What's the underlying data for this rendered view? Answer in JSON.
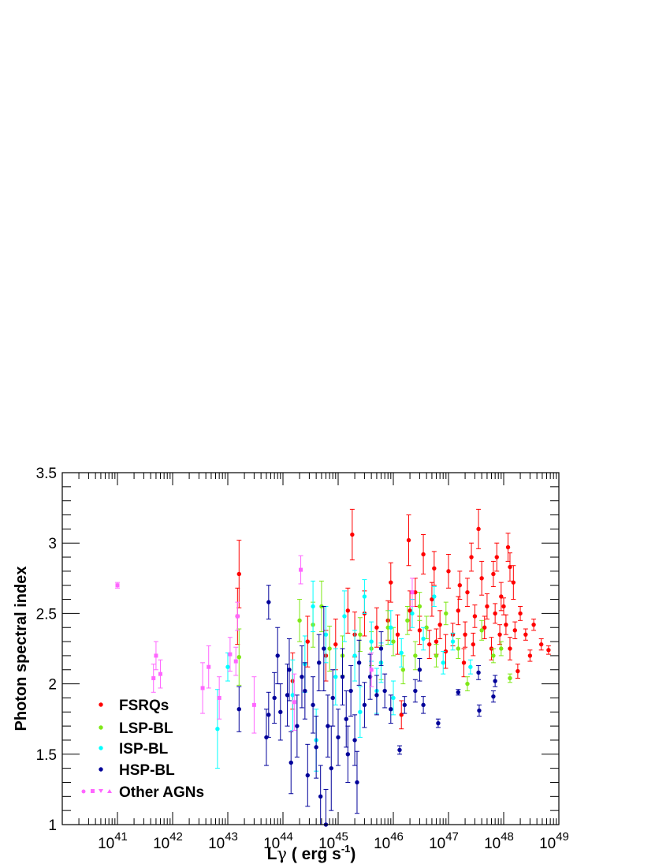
{
  "chart_data": {
    "type": "scatter",
    "title": "",
    "xlabel_parts": [
      "L",
      "γ",
      " ( erg s",
      "-1",
      ")"
    ],
    "ylabel": "Photon spectral index",
    "x_scale": "log",
    "xlim": [
      1e+40,
      1e+49
    ],
    "ylim": [
      1,
      3.5
    ],
    "x_ticks": [
      {
        "base": "10",
        "exp": "41"
      },
      {
        "base": "10",
        "exp": "42"
      },
      {
        "base": "10",
        "exp": "43"
      },
      {
        "base": "10",
        "exp": "44"
      },
      {
        "base": "10",
        "exp": "45"
      },
      {
        "base": "10",
        "exp": "46"
      },
      {
        "base": "10",
        "exp": "47"
      },
      {
        "base": "10",
        "exp": "48"
      },
      {
        "base": "10",
        "exp": "49"
      }
    ],
    "y_ticks": [
      "1",
      "1.5",
      "2",
      "2.5",
      "3",
      "3.5"
    ],
    "y_tick_values": [
      1,
      1.5,
      2,
      2.5,
      3,
      3.5
    ],
    "grid": false,
    "legend_position": "bottom-left",
    "legend": [
      "FSRQs",
      "LSP-BL",
      "ISP-BL",
      "HSP-BL",
      "Other AGNs"
    ],
    "series": [
      {
        "name": "FSRQs",
        "color": "#ff0000",
        "marker": "circle",
        "points": [
          [
            1.6e+43,
            2.78,
            0.24
          ],
          [
            1.5e+43,
            2.48,
            0.2
          ],
          [
            1.8e+45,
            3.06,
            0.18
          ],
          [
            1.9e+46,
            3.02,
            0.18
          ],
          [
            3.5e+47,
            3.1,
            0.14
          ],
          [
            7.5e+47,
            2.9,
            0.1
          ],
          [
            1.2e+48,
            2.97,
            0.1
          ],
          [
            1.3e+48,
            2.83,
            0.1
          ],
          [
            1.5e+48,
            2.72,
            0.12
          ],
          [
            2e+48,
            2.5,
            0.05
          ],
          [
            2.5e+48,
            2.35,
            0.04
          ],
          [
            3.5e+48,
            2.42,
            0.04
          ],
          [
            4.8e+48,
            2.28,
            0.04
          ],
          [
            6.5e+48,
            2.24,
            0.03
          ],
          [
            1.8e+48,
            2.09,
            0.05
          ],
          [
            3e+48,
            2.2,
            0.04
          ],
          [
            1.4e+46,
            1.78,
            0.1
          ],
          [
            8.9e+46,
            2.23,
            0.12
          ],
          [
            1e+47,
            2.8,
            0.12
          ],
          [
            2.2e+47,
            2.65,
            0.1
          ],
          [
            5e+47,
            2.55,
            0.09
          ],
          [
            9e+47,
            2.62,
            0.1
          ],
          [
            1.3e+48,
            2.25,
            0.08
          ],
          [
            1.1e+48,
            2.42,
            0.07
          ],
          [
            6e+47,
            2.25,
            0.08
          ],
          [
            4e+47,
            2.75,
            0.12
          ],
          [
            3e+47,
            2.48,
            0.08
          ],
          [
            2e+47,
            2.35,
            0.09
          ],
          [
            1.5e+47,
            2.52,
            0.1
          ],
          [
            7e+46,
            2.42,
            0.1
          ],
          [
            5e+46,
            2.6,
            0.12
          ],
          [
            3e+46,
            2.38,
            0.1
          ],
          [
            2e+46,
            2.52,
            0.14
          ],
          [
            1.2e+46,
            2.35,
            0.14
          ],
          [
            8e+45,
            2.45,
            0.14
          ],
          [
            5e+45,
            2.4,
            0.14
          ],
          [
            3e+45,
            2.5,
            0.16
          ],
          [
            2e+45,
            2.35,
            0.16
          ],
          [
            1.5e+45,
            2.52,
            0.16
          ],
          [
            9e+44,
            2.28,
            0.18
          ],
          [
            6e+44,
            2.2,
            0.18
          ],
          [
            2.8e+44,
            2.3,
            0.18
          ],
          [
            1.5e+44,
            2.02,
            0.2
          ],
          [
            1.9e+47,
            2.15,
            0.1
          ],
          [
            4.5e+46,
            2.28,
            0.1
          ],
          [
            2.5e+46,
            2.65,
            0.1
          ],
          [
            1.6e+47,
            2.7,
            0.1
          ],
          [
            2.6e+47,
            2.9,
            0.1
          ],
          [
            6.5e+47,
            2.78,
            0.09
          ],
          [
            8.5e+47,
            2.35,
            0.07
          ],
          [
            1e+48,
            2.55,
            0.06
          ],
          [
            1.6e+48,
            2.38,
            0.06
          ],
          [
            5.5e+46,
            2.82,
            0.12
          ],
          [
            3.5e+46,
            2.92,
            0.14
          ],
          [
            9e+45,
            2.72,
            0.14
          ],
          [
            6e+46,
            2.3,
            0.09
          ],
          [
            1.2e+47,
            2.35,
            0.08
          ],
          [
            2.8e+47,
            2.28,
            0.08
          ],
          [
            4.5e+47,
            2.4,
            0.08
          ],
          [
            7e+47,
            2.5,
            0.07
          ]
        ]
      },
      {
        "name": "LSP-BL",
        "color": "#7fe817",
        "marker": "circle",
        "points": [
          [
            1.6e+43,
            2.19,
            0.2
          ],
          [
            2e+44,
            2.45,
            0.15
          ],
          [
            3.5e+44,
            2.42,
            0.16
          ],
          [
            5e+44,
            2.55,
            0.18
          ],
          [
            7e+44,
            2.25,
            0.16
          ],
          [
            1.2e+45,
            2.2,
            0.14
          ],
          [
            2.5e+45,
            2.35,
            0.12
          ],
          [
            4e+45,
            2.25,
            0.12
          ],
          [
            6e+45,
            2.15,
            0.12
          ],
          [
            1e+46,
            2.3,
            0.1
          ],
          [
            1.5e+46,
            2.1,
            0.1
          ],
          [
            2.5e+46,
            2.2,
            0.1
          ],
          [
            4e+46,
            2.4,
            0.08
          ],
          [
            6e+46,
            2.2,
            0.08
          ],
          [
            9e+46,
            2.5,
            0.08
          ],
          [
            1.5e+47,
            2.25,
            0.07
          ],
          [
            2.2e+47,
            2.0,
            0.05
          ],
          [
            4e+47,
            2.38,
            0.07
          ],
          [
            6.5e+47,
            2.2,
            0.05
          ],
          [
            9e+47,
            2.25,
            0.05
          ],
          [
            1.3e+48,
            2.04,
            0.03
          ],
          [
            3e+46,
            2.55,
            0.1
          ],
          [
            8e+45,
            2.4,
            0.12
          ],
          [
            1.8e+46,
            2.45,
            0.1
          ]
        ]
      },
      {
        "name": "ISP-BL",
        "color": "#00ffff",
        "marker": "circle",
        "points": [
          [
            1e+43,
            2.12,
            0.1
          ],
          [
            6.5e+42,
            1.68,
            0.28
          ],
          [
            1.5e+44,
            1.92,
            0.25
          ],
          [
            2.5e+44,
            2.14,
            0.2
          ],
          [
            3.5e+44,
            2.55,
            0.18
          ],
          [
            6e+44,
            2.35,
            0.2
          ],
          [
            9e+44,
            2.05,
            0.2
          ],
          [
            1.3e+45,
            2.48,
            0.18
          ],
          [
            2e+45,
            2.2,
            0.18
          ],
          [
            3e+45,
            2.62,
            0.12
          ],
          [
            4e+45,
            2.3,
            0.14
          ],
          [
            6e+45,
            2.15,
            0.14
          ],
          [
            9e+45,
            2.4,
            0.12
          ],
          [
            1.4e+46,
            2.22,
            0.1
          ],
          [
            2.2e+46,
            2.5,
            0.1
          ],
          [
            3.5e+46,
            2.32,
            0.08
          ],
          [
            5.5e+46,
            2.62,
            0.07
          ],
          [
            8e+46,
            2.15,
            0.08
          ],
          [
            1.2e+47,
            2.3,
            0.06
          ],
          [
            2.5e+47,
            2.12,
            0.05
          ],
          [
            5e+45,
            1.95,
            0.16
          ],
          [
            2.5e+45,
            1.8,
            0.18
          ],
          [
            1e+46,
            1.9,
            0.12
          ],
          [
            4e+44,
            1.6,
            0.22
          ]
        ]
      },
      {
        "name": "HSP-BL",
        "color": "#000099",
        "marker": "circle",
        "points": [
          [
            1.6e+43,
            1.82,
            0.16
          ],
          [
            5e+43,
            1.62,
            0.2
          ],
          [
            5.5e+43,
            1.78,
            0.16
          ],
          [
            5.5e+43,
            2.58,
            0.12
          ],
          [
            7e+43,
            1.9,
            0.18
          ],
          [
            9e+43,
            1.8,
            0.2
          ],
          [
            1.2e+44,
            1.92,
            0.22
          ],
          [
            1.4e+44,
            1.44,
            0.22
          ],
          [
            1.8e+44,
            1.7,
            0.22
          ],
          [
            2.2e+44,
            2.05,
            0.22
          ],
          [
            2.8e+44,
            1.35,
            0.22
          ],
          [
            3.5e+44,
            1.85,
            0.2
          ],
          [
            4e+44,
            1.55,
            0.22
          ],
          [
            4.8e+44,
            1.2,
            0.22
          ],
          [
            5.5e+44,
            2.25,
            0.3
          ],
          [
            6.5e+44,
            1.7,
            0.22
          ],
          [
            8e+44,
            1.9,
            0.2
          ],
          [
            1e+45,
            1.62,
            0.2
          ],
          [
            1.2e+45,
            2.05,
            0.2
          ],
          [
            1.4e+45,
            1.75,
            0.2
          ],
          [
            1.7e+45,
            1.95,
            0.18
          ],
          [
            2e+45,
            1.6,
            0.18
          ],
          [
            2.4e+45,
            2.15,
            0.16
          ],
          [
            3e+45,
            1.85,
            0.16
          ],
          [
            3.8e+45,
            2.05,
            0.16
          ],
          [
            5e+45,
            1.92,
            0.14
          ],
          [
            7e+45,
            1.95,
            0.12
          ],
          [
            9e+45,
            1.82,
            0.1
          ],
          [
            1.3e+46,
            1.53,
            0.03
          ],
          [
            1.6e+46,
            1.85,
            0.06
          ],
          [
            2.5e+46,
            1.95,
            0.08
          ],
          [
            3.5e+46,
            1.85,
            0.06
          ],
          [
            6.5e+46,
            1.72,
            0.03
          ],
          [
            1.5e+47,
            1.94,
            0.02
          ],
          [
            3.6e+47,
            1.81,
            0.04
          ],
          [
            6.5e+47,
            1.91,
            0.04
          ],
          [
            7e+47,
            2.02,
            0.04
          ],
          [
            3.5e+47,
            2.08,
            0.05
          ],
          [
            3e+46,
            2.1,
            0.08
          ],
          [
            6e+45,
            2.25,
            0.12
          ],
          [
            8e+43,
            2.2,
            0.2
          ],
          [
            1.3e+44,
            2.1,
            0.22
          ],
          [
            2.5e+44,
            1.95,
            0.2
          ],
          [
            4.5e+44,
            2.15,
            0.2
          ],
          [
            6e+44,
            1.0,
            0.25
          ],
          [
            7.5e+44,
            1.4,
            0.3
          ],
          [
            2.2e+45,
            1.3,
            0.22
          ],
          [
            1.5e+45,
            1.5,
            0.2
          ]
        ]
      },
      {
        "name": "Other AGNs",
        "color": "#ff66ff",
        "marker": "square",
        "points": [
          [
            1e+41,
            2.7,
            0.02
          ],
          [
            4.5e+41,
            2.04,
            0.1
          ],
          [
            5e+41,
            2.2,
            0.1
          ],
          [
            6e+41,
            2.07,
            0.1
          ],
          [
            3.5e+42,
            1.97,
            0.18
          ],
          [
            4.5e+42,
            2.12,
            0.15
          ],
          [
            7e+42,
            1.9,
            0.15
          ],
          [
            1.1e+43,
            2.21,
            0.12
          ],
          [
            1.4e+43,
            2.16,
            0.1
          ],
          [
            1.5e+43,
            2.48,
            0.1
          ],
          [
            2.1e+44,
            2.81,
            0.1
          ],
          [
            1.6e+44,
            1.87,
            0.2
          ],
          [
            3e+43,
            1.85,
            0.2
          ],
          [
            4e+45,
            2.1,
            0.12
          ],
          [
            2.2e+46,
            2.65,
            0.1
          ]
        ]
      }
    ]
  }
}
